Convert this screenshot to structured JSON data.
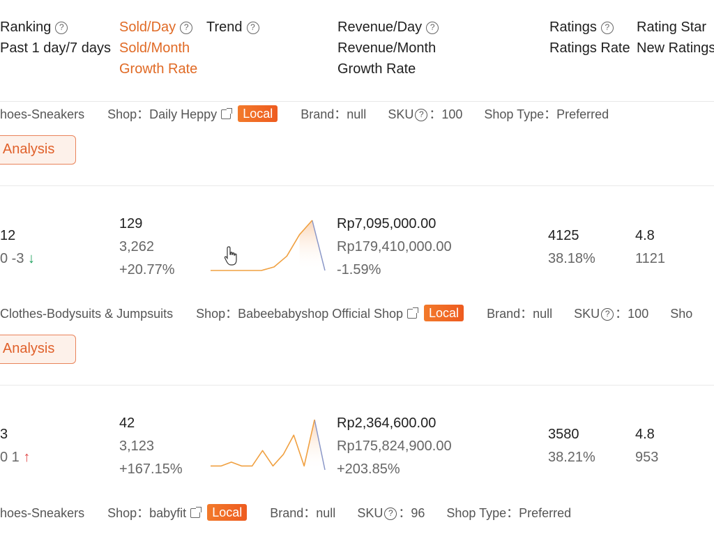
{
  "header": {
    "ranking": "Ranking",
    "ranking_sub": "Past 1 day/7 days",
    "sold_day": "Sold/Day",
    "trend": "Trend",
    "sold_month": "Sold/Month",
    "growth_rate": "Growth Rate",
    "revenue_day": "Revenue/Day",
    "revenue_month": "Revenue/Month",
    "revenue_growth": "Growth Rate",
    "ratings": "Ratings",
    "ratings_rate": "Ratings Rate",
    "rating_star": "Rating Star",
    "new_ratings": "New Ratings",
    "help_glyph": "?"
  },
  "labels": {
    "shop": "Shop：",
    "brand": "Brand：",
    "sku": "SKU",
    "sku_colon": "：",
    "shop_type": "Shop Type：",
    "local": "Local",
    "analysis": "l Analysis",
    "shop_cut": "Sho"
  },
  "rows": [
    {
      "category": "hoes-Sneakers",
      "shop": "Daily Heppy",
      "brand": "null",
      "sku": "100",
      "shop_type": "Preferred"
    },
    {
      "rank": "12",
      "rank_sub": "0 -3",
      "rank_dir": "down",
      "sold_day": "129",
      "sold_month": "3,262",
      "growth": "+20.77%",
      "revenue_day": "Rp7,095,000.00",
      "revenue_month": "Rp179,410,000.00",
      "revenue_growth": "-1.59%",
      "ratings": "4125",
      "ratings_rate": "38.18%",
      "rating_star": "4.8",
      "new_ratings": "1121",
      "category": "Clothes-Bodysuits & Jumpsuits",
      "shop": "Babeebabyshop Official Shop",
      "brand": "null",
      "sku": "100",
      "trend": [
        0,
        0,
        0,
        0,
        0,
        1,
        4,
        10,
        14,
        0
      ]
    },
    {
      "rank": "3",
      "rank_sub": "0 1",
      "rank_dir": "up",
      "sold_day": "42",
      "sold_month": "3,123",
      "growth": "+167.15%",
      "revenue_day": "Rp2,364,600.00",
      "revenue_month": "Rp175,824,900.00",
      "revenue_growth": "+203.85%",
      "ratings": "3580",
      "ratings_rate": "38.21%",
      "rating_star": "4.8",
      "new_ratings": "953",
      "category": "hoes-Sneakers",
      "shop": "babyfit",
      "brand": "null",
      "sku": "96",
      "shop_type": "Preferred",
      "trend": [
        1,
        1,
        2,
        1,
        1,
        5,
        1,
        4,
        9,
        1,
        13,
        0
      ]
    }
  ],
  "arrows": {
    "down": "↓",
    "up": "↑"
  },
  "colors": {
    "accent": "#e06a25",
    "trend_line": "#f0a040",
    "down": "#1a9f5a",
    "up": "#e04848"
  }
}
